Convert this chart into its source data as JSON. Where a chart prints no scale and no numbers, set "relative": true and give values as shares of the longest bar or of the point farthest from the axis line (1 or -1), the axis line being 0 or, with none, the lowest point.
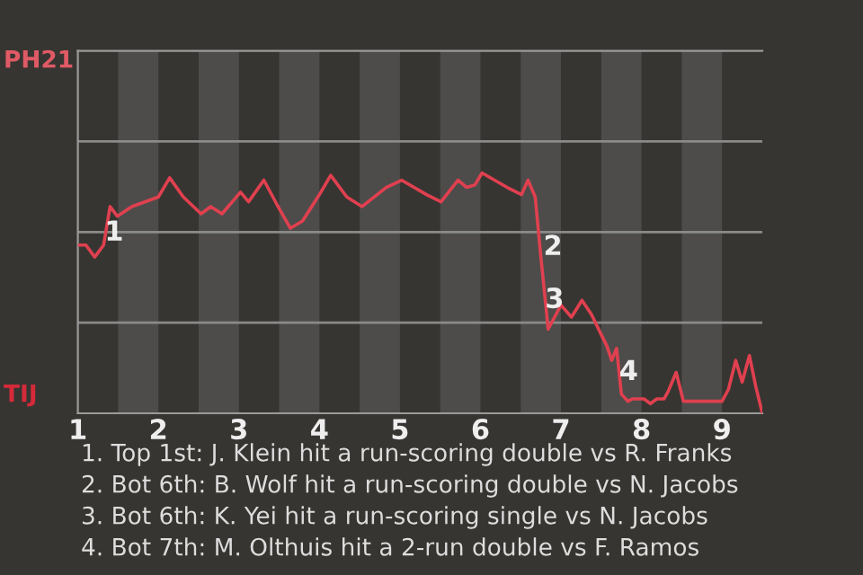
{
  "chart_data": {
    "type": "line",
    "relative": true,
    "x": [
      1,
      1.1,
      1.21,
      1.32,
      1.4,
      1.49,
      1.67,
      2,
      2.14,
      2.31,
      2.53,
      2.65,
      2.79,
      3.02,
      3.12,
      3.31,
      3.47,
      3.64,
      3.79,
      4,
      4.14,
      4.34,
      4.53,
      4.83,
      5.02,
      5.33,
      5.51,
      5.72,
      5.83,
      5.93,
      6.02,
      6.33,
      6.51,
      6.59,
      6.68,
      6.75,
      6.82,
      6.84,
      6.92,
      7,
      7.13,
      7.26,
      7.38,
      7.51,
      7.57,
      7.63,
      7.69,
      7.75,
      7.83,
      7.89,
      8.03,
      8.11,
      8.19,
      8.28,
      8.33,
      8.43,
      8.52,
      9,
      9.08,
      9.17,
      9.25,
      9.34,
      9.42,
      9.5
    ],
    "series": [
      {
        "color": "#e0404f",
        "values": [
          0.7,
          0.7,
          0.65,
          0.7,
          0.86,
          0.82,
          0.86,
          0.9,
          0.98,
          0.9,
          0.83,
          0.86,
          0.83,
          0.92,
          0.88,
          0.97,
          0.87,
          0.77,
          0.8,
          0.91,
          0.99,
          0.9,
          0.86,
          0.94,
          0.97,
          0.91,
          0.88,
          0.97,
          0.94,
          0.95,
          1,
          0.94,
          0.91,
          0.97,
          0.9,
          0.65,
          0.42,
          0.35,
          0.4,
          0.45,
          0.4,
          0.47,
          0.41,
          0.32,
          0.28,
          0.22,
          0.27,
          0.08,
          0.05,
          0.06,
          0.06,
          0.04,
          0.06,
          0.06,
          0.09,
          0.17,
          0.05,
          0.05,
          0.1,
          0.22,
          0.13,
          0.24,
          0.11,
          0
        ]
      }
    ],
    "xlim": [
      1,
      9.5
    ],
    "xticks": [
      1,
      2,
      3,
      4,
      5,
      6,
      7,
      8,
      9
    ],
    "ref_lines": [
      {
        "axis": "y",
        "value": 0.377,
        "color": "#8a8a8a"
      },
      {
        "axis": "y",
        "value": 0.754,
        "color": "#8a8a8a"
      },
      {
        "axis": "y",
        "value": 1.131,
        "color": "#8a8a8a"
      }
    ],
    "marker": "none",
    "line_style": "solid",
    "bands": [
      {
        "axis": "x",
        "from": 1.5,
        "to": 2,
        "color": "#4d4c4b"
      },
      {
        "axis": "x",
        "from": 2.5,
        "to": 3,
        "color": "#4d4c4b"
      },
      {
        "axis": "x",
        "from": 3.5,
        "to": 4,
        "color": "#4d4c4b"
      },
      {
        "axis": "x",
        "from": 4.5,
        "to": 5,
        "color": "#4d4c4b"
      },
      {
        "axis": "x",
        "from": 5.5,
        "to": 6,
        "color": "#4d4c4b"
      },
      {
        "axis": "x",
        "from": 6.5,
        "to": 7,
        "color": "#4d4c4b"
      },
      {
        "axis": "x",
        "from": 7.5,
        "to": 8,
        "color": "#4d4c4b"
      },
      {
        "axis": "x",
        "from": 8.5,
        "to": 9,
        "color": "#4d4c4b"
      }
    ],
    "annotations": [
      "PH21",
      "TIJ",
      {
        "text": "1",
        "x": 1.45,
        "y": 0.75
      },
      {
        "text": "2",
        "x": 6.9,
        "y": 0.69
      },
      {
        "text": "3",
        "x": 6.92,
        "y": 0.47
      },
      {
        "text": "4",
        "x": 7.84,
        "y": 0.17
      },
      "1. Top 1st: J. Klein hit a run-scoring double vs R. Franks",
      "2. Bot 6th: B. Wolf hit a run-scoring double vs N. Jacobs",
      "3. Bot 6th: K. Yei hit a run-scoring single vs N. Jacobs",
      "4. Bot 7th: M. Olthuis hit a 2-run double vs F. Ramos"
    ]
  }
}
